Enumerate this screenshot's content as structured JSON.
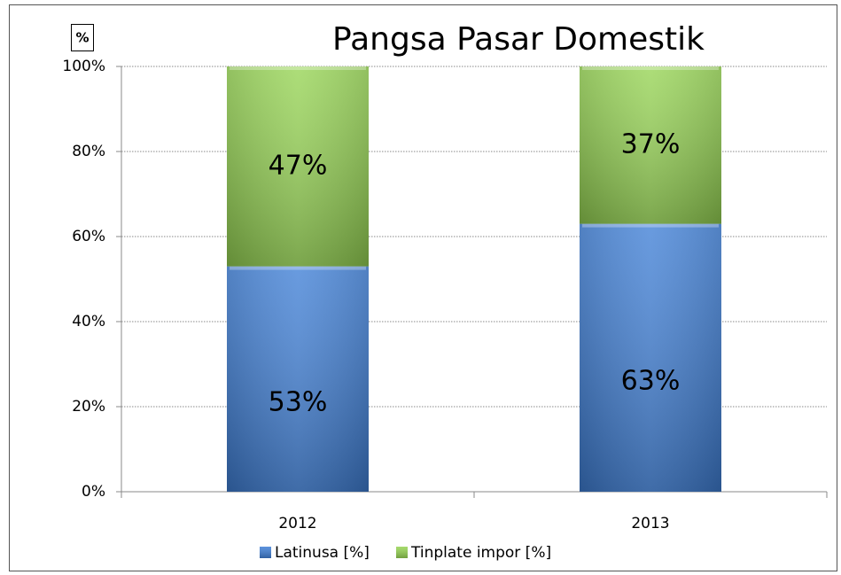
{
  "chart_data": {
    "type": "stacked_bar",
    "title": "Pangsa Pasar Domestik",
    "y_label": "%",
    "categories": [
      "2012",
      "2013"
    ],
    "series": [
      {
        "name": "Latinusa [%]",
        "color": "#3f7fd6",
        "values": [
          53,
          63
        ],
        "value_labels": [
          "53%",
          "63%"
        ]
      },
      {
        "name": "Tinplate impor [%]",
        "color": "#96d453",
        "values": [
          47,
          37
        ],
        "value_labels": [
          "47%",
          "37%"
        ]
      }
    ],
    "ylim": [
      0,
      100
    ],
    "yticks": [
      {
        "value": 0,
        "label": "0%"
      },
      {
        "value": 20,
        "label": "20%"
      },
      {
        "value": 40,
        "label": "40%"
      },
      {
        "value": 60,
        "label": "60%"
      },
      {
        "value": 80,
        "label": "80%"
      },
      {
        "value": 100,
        "label": "100%"
      }
    ],
    "grid": true,
    "legend": "bottom"
  }
}
